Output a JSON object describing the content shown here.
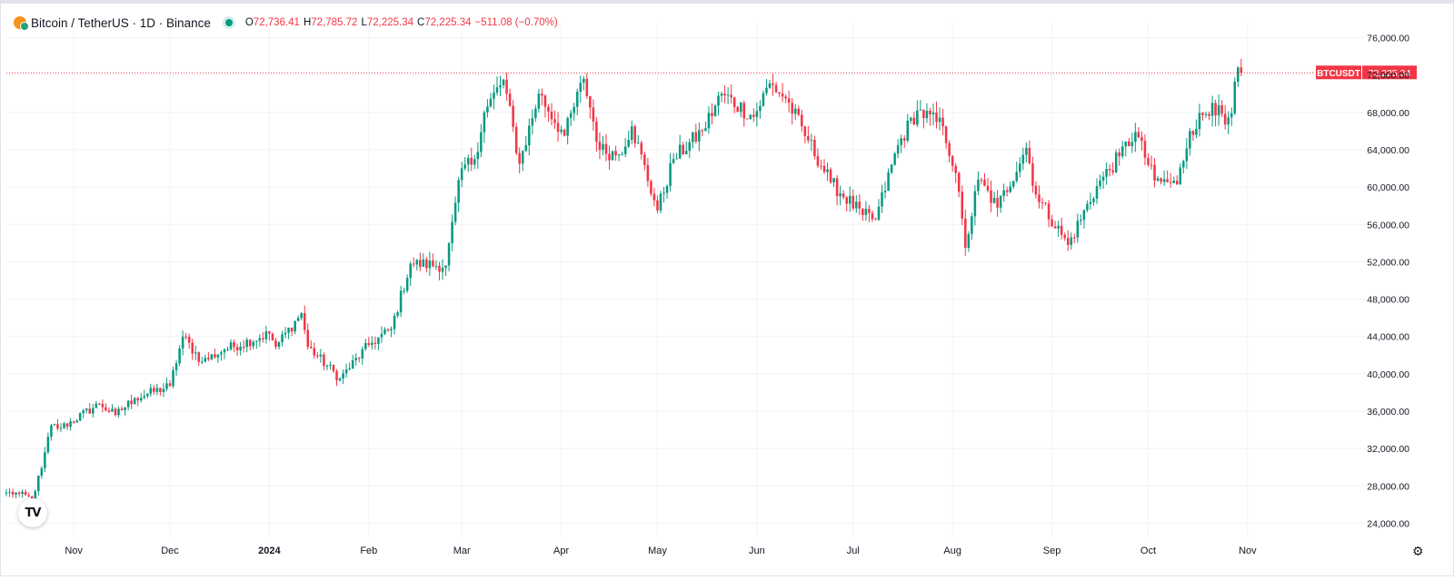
{
  "header": {
    "title": "Bitcoin / TetherUS · 1D · Binance",
    "ohlc": [
      {
        "k": "O",
        "v": "72,736.41"
      },
      {
        "k": "H",
        "v": "72,785.72"
      },
      {
        "k": "L",
        "v": "72,225.34"
      },
      {
        "k": "C",
        "v": "72,225.34"
      }
    ],
    "change": "−511.08 (−0.70%)"
  },
  "price_tag": {
    "symbol": "BTCUSDT",
    "value": "72,225.34"
  },
  "logo_text": "TV",
  "icons": {
    "status": "live-status-dot-icon",
    "coin": "btc-usdt-icon",
    "settings": "settings-gear-icon"
  },
  "colors": {
    "up": "#089981",
    "down": "#f23645",
    "grid": "#f0f3fa",
    "text": "#131722"
  },
  "chart_data": {
    "type": "candlestick",
    "series_name": "BTCUSDT",
    "interval": "1D",
    "y_ticks": [
      "24,000.00",
      "28,000.00",
      "32,000.00",
      "36,000.00",
      "40,000.00",
      "44,000.00",
      "48,000.00",
      "52,000.00",
      "56,000.00",
      "60,000.00",
      "64,000.00",
      "68,000.00",
      "72,000.00",
      "76,000.00"
    ],
    "y_tick_values": [
      24000,
      28000,
      32000,
      36000,
      40000,
      44000,
      48000,
      52000,
      56000,
      60000,
      64000,
      68000,
      72000,
      76000
    ],
    "x_ticks": [
      "Nov",
      "Dec",
      "2024",
      "Feb",
      "Mar",
      "Apr",
      "May",
      "Jun",
      "Jul",
      "Aug",
      "Sep",
      "Oct",
      "Nov"
    ],
    "x_tick_dates": [
      "2023-11-01",
      "2023-12-01",
      "2024-01-01",
      "2024-02-01",
      "2024-03-01",
      "2024-04-01",
      "2024-05-01",
      "2024-06-01",
      "2024-07-01",
      "2024-08-01",
      "2024-09-01",
      "2024-10-01",
      "2024-11-01"
    ],
    "ylim": [
      22500,
      77500
    ],
    "xlim": [
      "2023-10-11",
      "2024-11-22"
    ],
    "last_price": 72225.34,
    "anchors": [
      {
        "date": "2023-10-11",
        "close": 27300
      },
      {
        "date": "2023-10-15",
        "close": 27150
      },
      {
        "date": "2023-10-19",
        "close": 26600
      },
      {
        "date": "2023-10-22",
        "close": 29900
      },
      {
        "date": "2023-10-25",
        "close": 34500
      },
      {
        "date": "2023-10-28",
        "close": 34200
      },
      {
        "date": "2023-11-09",
        "close": 36800
      },
      {
        "date": "2023-11-14",
        "close": 35600
      },
      {
        "date": "2023-11-20",
        "close": 37400
      },
      {
        "date": "2023-12-01",
        "close": 38700
      },
      {
        "date": "2023-12-05",
        "close": 44000
      },
      {
        "date": "2023-12-11",
        "close": 41300
      },
      {
        "date": "2023-12-18",
        "close": 42600
      },
      {
        "date": "2024-01-01",
        "close": 44300
      },
      {
        "date": "2024-01-03",
        "close": 42900
      },
      {
        "date": "2024-01-11",
        "close": 46500
      },
      {
        "date": "2024-01-13",
        "close": 42900
      },
      {
        "date": "2024-01-23",
        "close": 39500
      },
      {
        "date": "2024-02-01",
        "close": 43100
      },
      {
        "date": "2024-02-08",
        "close": 44800
      },
      {
        "date": "2024-02-14",
        "close": 51800
      },
      {
        "date": "2024-02-25",
        "close": 51600
      },
      {
        "date": "2024-03-01",
        "close": 62000
      },
      {
        "date": "2024-03-05",
        "close": 63000
      },
      {
        "date": "2024-03-08",
        "close": 68000
      },
      {
        "date": "2024-03-14",
        "close": 71500
      },
      {
        "date": "2024-03-19",
        "close": 62500
      },
      {
        "date": "2024-03-25",
        "close": 70000
      },
      {
        "date": "2024-04-02",
        "close": 65500
      },
      {
        "date": "2024-04-08",
        "close": 71600
      },
      {
        "date": "2024-04-13",
        "close": 64000
      },
      {
        "date": "2024-04-19",
        "close": 63500
      },
      {
        "date": "2024-04-23",
        "close": 66500
      },
      {
        "date": "2024-05-01",
        "close": 57500
      },
      {
        "date": "2024-05-06",
        "close": 63000
      },
      {
        "date": "2024-05-15",
        "close": 66000
      },
      {
        "date": "2024-05-21",
        "close": 70000
      },
      {
        "date": "2024-05-31",
        "close": 67500
      },
      {
        "date": "2024-06-05",
        "close": 71100
      },
      {
        "date": "2024-06-10",
        "close": 69500
      },
      {
        "date": "2024-06-17",
        "close": 65000
      },
      {
        "date": "2024-06-24",
        "close": 60500
      },
      {
        "date": "2024-07-04",
        "close": 57000
      },
      {
        "date": "2024-07-08",
        "close": 56500
      },
      {
        "date": "2024-07-15",
        "close": 64500
      },
      {
        "date": "2024-07-21",
        "close": 68200
      },
      {
        "date": "2024-07-29",
        "close": 66500
      },
      {
        "date": "2024-08-02",
        "close": 61500
      },
      {
        "date": "2024-08-05",
        "close": 53500
      },
      {
        "date": "2024-08-09",
        "close": 60800
      },
      {
        "date": "2024-08-15",
        "close": 57800
      },
      {
        "date": "2024-08-24",
        "close": 64200
      },
      {
        "date": "2024-08-27",
        "close": 59200
      },
      {
        "date": "2024-09-06",
        "close": 53800
      },
      {
        "date": "2024-09-15",
        "close": 60100
      },
      {
        "date": "2024-09-22",
        "close": 63300
      },
      {
        "date": "2024-09-27",
        "close": 65900
      },
      {
        "date": "2024-10-03",
        "close": 60700
      },
      {
        "date": "2024-10-10",
        "close": 60300
      },
      {
        "date": "2024-10-14",
        "close": 66000
      },
      {
        "date": "2024-10-21",
        "close": 69000
      },
      {
        "date": "2024-10-25",
        "close": 66700
      },
      {
        "date": "2024-10-27",
        "close": 67900
      },
      {
        "date": "2024-10-29",
        "close": 72800
      },
      {
        "date": "2024-10-30",
        "close": 72225.34
      }
    ]
  }
}
